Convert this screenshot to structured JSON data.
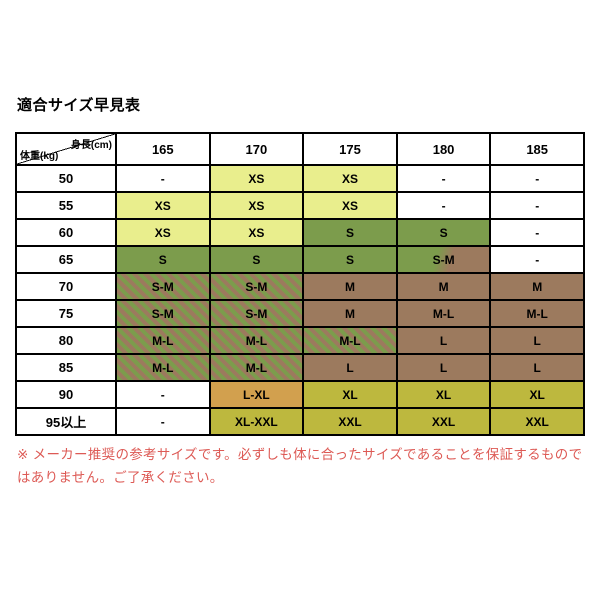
{
  "title": "適合サイズ早見表",
  "chart_data": {
    "type": "table",
    "title": "適合サイズ早見表",
    "corner_top_label": "身長(cm)",
    "corner_bottom_label": "体重(kg)",
    "columns": [
      "165",
      "170",
      "175",
      "180",
      "185"
    ],
    "row_headers": [
      "50",
      "55",
      "60",
      "65",
      "70",
      "75",
      "80",
      "85",
      "90",
      "95以上"
    ],
    "values": [
      [
        "-",
        "XS",
        "XS",
        "-",
        "-"
      ],
      [
        "XS",
        "XS",
        "XS",
        "-",
        "-"
      ],
      [
        "XS",
        "XS",
        "S",
        "S",
        "-"
      ],
      [
        "S",
        "S",
        "S",
        "S-M",
        "-"
      ],
      [
        "S-M",
        "S-M",
        "M",
        "M",
        "M"
      ],
      [
        "S-M",
        "S-M",
        "M",
        "M-L",
        "M-L"
      ],
      [
        "M-L",
        "M-L",
        "M-L",
        "L",
        "L"
      ],
      [
        "M-L",
        "M-L",
        "L",
        "L",
        "L"
      ],
      [
        "-",
        "L-XL",
        "XL",
        "XL",
        "XL"
      ],
      [
        "-",
        "XL-XXL",
        "XXL",
        "XXL",
        "XXL"
      ]
    ],
    "cell_colors": [
      [
        "white",
        "yellow",
        "yellow",
        "white",
        "white"
      ],
      [
        "yellow",
        "yellow",
        "yellow",
        "white",
        "white"
      ],
      [
        "yellow",
        "yellow",
        "green",
        "green",
        "white"
      ],
      [
        "green",
        "green",
        "green",
        "grad",
        "white"
      ],
      [
        "stripe",
        "stripe",
        "brown",
        "brown",
        "brown"
      ],
      [
        "stripe",
        "stripe",
        "brown",
        "brown",
        "brown"
      ],
      [
        "stripe",
        "stripe",
        "stripe",
        "brown",
        "brown"
      ],
      [
        "stripe",
        "stripe",
        "brown",
        "brown",
        "brown"
      ],
      [
        "white",
        "tan",
        "lime",
        "lime",
        "lime"
      ],
      [
        "white",
        "lime",
        "lime",
        "lime",
        "lime"
      ]
    ]
  },
  "colors": {
    "yellow": "#e9ee8d",
    "green": "#7c9c4c",
    "brown": "#9c7a5e",
    "tan": "#d2a04e",
    "lime": "#bdb83e",
    "note_red": "#dd5a55",
    "border": "#000000"
  },
  "note": "※ メーカー推奨の参考サイズです。必ずしも体に合ったサイズであることを保証するものではありません。ご了承ください。"
}
